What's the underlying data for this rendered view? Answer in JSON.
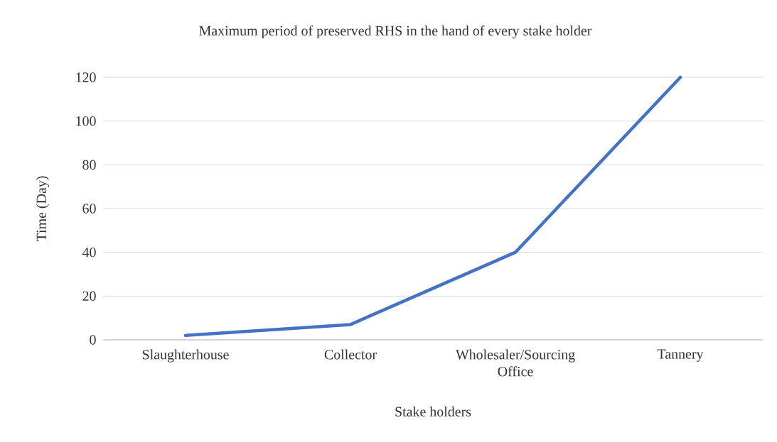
{
  "chart_data": {
    "type": "line",
    "title": "Maximum period of preserved RHS in the hand of every stake holder",
    "xlabel": "Stake holders",
    "ylabel": "Time (Day)",
    "categories": [
      "Slaughterhouse",
      "Collector",
      "Wholesaler/Sourcing Office",
      "Tannery"
    ],
    "values": [
      2,
      7,
      40,
      120
    ],
    "color": "#4472c4",
    "ylim": [
      0,
      120
    ],
    "yticks": [
      0,
      20,
      40,
      60,
      80,
      100,
      120
    ],
    "grid": "y"
  }
}
